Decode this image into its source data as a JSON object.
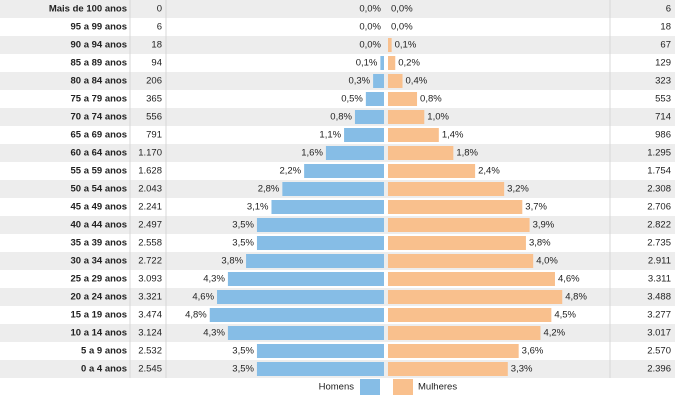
{
  "chart_data": {
    "type": "pyramid",
    "categories": [
      "Mais de 100 anos",
      "95 a 99 anos",
      "90 a 94 anos",
      "85 a 89 anos",
      "80 a 84 anos",
      "75 a 79 anos",
      "70 a 74 anos",
      "65 a 69 anos",
      "60 a 64 anos",
      "55 a 59 anos",
      "50 a 54 anos",
      "45 a 49 anos",
      "40 a 44 anos",
      "35 a 39 anos",
      "30 a 34 anos",
      "25 a 29 anos",
      "20 a 24 anos",
      "15 a 19 anos",
      "10 a 14 anos",
      "5 a 9 anos",
      "0 a 4 anos"
    ],
    "series": [
      {
        "name": "Homens",
        "color": "#86bde6",
        "values": [
          0,
          0,
          0,
          0.1,
          0.3,
          0.5,
          0.8,
          1.1,
          1.6,
          2.2,
          2.8,
          3.1,
          3.5,
          3.5,
          3.8,
          4.3,
          4.6,
          4.8,
          4.3,
          3.5,
          3.5
        ],
        "value_labels": [
          "0,0%",
          "0,0%",
          "0,0%",
          "0,1%",
          "0,3%",
          "0,5%",
          "0,8%",
          "1,1%",
          "1,6%",
          "2,2%",
          "2,8%",
          "3,1%",
          "3,5%",
          "3,5%",
          "3,8%",
          "4,3%",
          "4,6%",
          "4,8%",
          "4,3%",
          "3,5%",
          "3,5%"
        ],
        "counts": [
          "0",
          "6",
          "18",
          "94",
          "206",
          "365",
          "556",
          "791",
          "1.170",
          "1.628",
          "2.043",
          "2.241",
          "2.497",
          "2.558",
          "2.722",
          "3.093",
          "3.321",
          "3.474",
          "3.124",
          "2.532",
          "2.545"
        ]
      },
      {
        "name": "Mulheres",
        "color": "#f9c08d",
        "values": [
          0,
          0,
          0.1,
          0.2,
          0.4,
          0.8,
          1.0,
          1.4,
          1.8,
          2.4,
          3.2,
          3.7,
          3.9,
          3.8,
          4.0,
          4.6,
          4.8,
          4.5,
          4.2,
          3.6,
          3.3
        ],
        "value_labels": [
          "0,0%",
          "0,0%",
          "0,1%",
          "0,2%",
          "0,4%",
          "0,8%",
          "1,0%",
          "1,4%",
          "1,8%",
          "2,4%",
          "3,2%",
          "3,7%",
          "3,9%",
          "3,8%",
          "4,0%",
          "4,6%",
          "4,8%",
          "4,5%",
          "4,2%",
          "3,6%",
          "3,3%"
        ],
        "counts": [
          "6",
          "18",
          "67",
          "129",
          "323",
          "553",
          "714",
          "986",
          "1.295",
          "1.754",
          "2.308",
          "2.706",
          "2.822",
          "2.735",
          "2.911",
          "3.311",
          "3.488",
          "3.277",
          "3.017",
          "2.570",
          "2.396"
        ]
      }
    ]
  }
}
